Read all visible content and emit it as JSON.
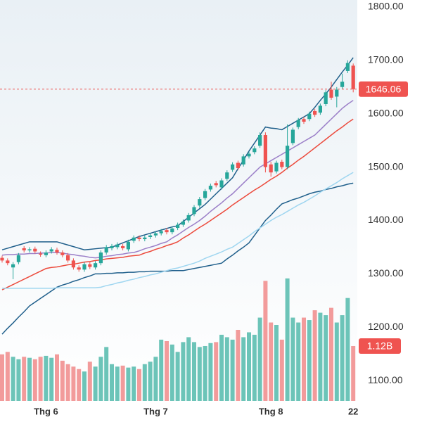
{
  "chart_data": {
    "type": "candlestick",
    "categories": [
      null,
      null,
      null,
      null,
      null,
      null,
      null,
      null,
      "Thg 6",
      null,
      null,
      null,
      null,
      null,
      null,
      null,
      null,
      null,
      null,
      null,
      null,
      null,
      null,
      null,
      null,
      null,
      null,
      null,
      "Thg 7",
      null,
      null,
      null,
      null,
      null,
      null,
      null,
      null,
      null,
      null,
      null,
      null,
      null,
      null,
      null,
      null,
      null,
      null,
      null,
      null,
      "Thg 8",
      null,
      null,
      null,
      null,
      null,
      null,
      null,
      null,
      null,
      null,
      null,
      null,
      null,
      null,
      "22"
    ],
    "open": [
      1330,
      1325,
      1312,
      1322,
      1348,
      1344,
      1347,
      1338,
      1335,
      1342,
      1345,
      1340,
      1335,
      1325,
      1312,
      1308,
      1318,
      1312,
      1320,
      1340,
      1348,
      1350,
      1352,
      1346,
      1362,
      1368,
      1365,
      1369,
      1372,
      1376,
      1382,
      1378,
      1386,
      1392,
      1400,
      1412,
      1428,
      1442,
      1458,
      1470,
      1462,
      1478,
      1495,
      1508,
      1505,
      1520,
      1528,
      1540,
      1560,
      1505,
      1492,
      1510,
      1500,
      1545,
      1575,
      1590,
      1590,
      1605,
      1602,
      1618,
      1645,
      1632,
      1650,
      1680,
      1690
    ],
    "high": [
      1334,
      1329,
      1322,
      1339,
      1352,
      1350,
      1351,
      1342,
      1344,
      1350,
      1349,
      1344,
      1339,
      1329,
      1316,
      1322,
      1322,
      1324,
      1344,
      1354,
      1356,
      1359,
      1356,
      1364,
      1372,
      1372,
      1372,
      1376,
      1380,
      1384,
      1386,
      1389,
      1396,
      1402,
      1414,
      1429,
      1444,
      1459,
      1469,
      1474,
      1479,
      1494,
      1509,
      1512,
      1524,
      1529,
      1539,
      1565,
      1565,
      1510,
      1512,
      1514,
      1580,
      1574,
      1592,
      1594,
      1604,
      1609,
      1619,
      1644,
      1660,
      1650,
      1675,
      1700,
      1694
    ],
    "low": [
      1321,
      1316,
      1290,
      1318,
      1340,
      1340,
      1338,
      1332,
      1331,
      1338,
      1336,
      1331,
      1321,
      1308,
      1304,
      1304,
      1309,
      1308,
      1316,
      1336,
      1344,
      1346,
      1344,
      1342,
      1358,
      1361,
      1361,
      1365,
      1368,
      1372,
      1374,
      1374,
      1382,
      1388,
      1396,
      1408,
      1424,
      1438,
      1454,
      1462,
      1458,
      1474,
      1491,
      1494,
      1501,
      1516,
      1524,
      1536,
      1490,
      1482,
      1488,
      1496,
      1496,
      1541,
      1571,
      1581,
      1586,
      1594,
      1598,
      1614,
      1626,
      1612,
      1646,
      1676,
      1640
    ],
    "close": [
      1325,
      1320,
      1318,
      1335,
      1344,
      1346,
      1342,
      1336,
      1340,
      1346,
      1340,
      1335,
      1325,
      1312,
      1308,
      1318,
      1313,
      1320,
      1340,
      1350,
      1352,
      1355,
      1348,
      1360,
      1368,
      1365,
      1368,
      1372,
      1376,
      1380,
      1378,
      1385,
      1392,
      1398,
      1410,
      1425,
      1440,
      1455,
      1465,
      1466,
      1475,
      1490,
      1505,
      1498,
      1520,
      1525,
      1535,
      1560,
      1500,
      1490,
      1508,
      1500,
      1540,
      1570,
      1588,
      1585,
      1600,
      1598,
      1615,
      1640,
      1630,
      1645,
      1660,
      1695,
      1646.06
    ],
    "up_color": "#26a69a",
    "down_color": "#ef5350",
    "overlays": [
      {
        "color": "#1f5f8b",
        "values": [
          1345,
          1348,
          1351,
          1354,
          1357,
          1360,
          1360,
          1360,
          1360,
          1360,
          1360,
          1357,
          1354,
          1351,
          1348,
          1345,
          1346,
          1347,
          1348,
          1349,
          1350,
          1354,
          1358,
          1362,
          1366,
          1370,
          1373,
          1376,
          1379,
          1382,
          1385,
          1388,
          1390,
          1398,
          1406,
          1414,
          1422,
          1430,
          1440,
          1450,
          1460,
          1470,
          1480,
          1497,
          1513,
          1530,
          1545,
          1560,
          1575,
          1573,
          1572,
          1570,
          1576,
          1582,
          1588,
          1594,
          1600,
          1612,
          1625,
          1637,
          1650,
          1664,
          1678,
          1691,
          1705
        ]
      },
      {
        "color": "#1f5f8b",
        "values": [
          1187,
          1198,
          1208,
          1219,
          1229,
          1240,
          1247,
          1254,
          1261,
          1268,
          1275,
          1279,
          1282,
          1286,
          1289,
          1293,
          1296,
          1300,
          1300,
          1301,
          1301,
          1302,
          1302,
          1303,
          1303,
          1304,
          1304,
          1305,
          1305,
          1305,
          1305,
          1306,
          1306,
          1306,
          1308,
          1310,
          1312,
          1314,
          1316,
          1318,
          1320,
          1328,
          1335,
          1343,
          1350,
          1358,
          1372,
          1386,
          1400,
          1410,
          1421,
          1431,
          1435,
          1439,
          1442,
          1446,
          1450,
          1453,
          1455,
          1458,
          1460,
          1463,
          1465,
          1468,
          1470
        ]
      },
      {
        "color": "#9b7fc8",
        "values": [
          1335,
          1336,
          1336,
          1337,
          1337,
          1338,
          1338,
          1339,
          1339,
          1340,
          1340,
          1339,
          1337,
          1336,
          1334,
          1333,
          1331,
          1330,
          1331,
          1333,
          1334,
          1336,
          1337,
          1339,
          1340,
          1343,
          1347,
          1350,
          1353,
          1357,
          1360,
          1367,
          1373,
          1380,
          1387,
          1393,
          1400,
          1408,
          1417,
          1425,
          1433,
          1442,
          1450,
          1460,
          1470,
          1480,
          1490,
          1500,
          1506,
          1512,
          1518,
          1524,
          1530,
          1536,
          1542,
          1548,
          1554,
          1560,
          1570,
          1580,
          1590,
          1600,
          1610,
          1618,
          1625
        ]
      },
      {
        "color": "#ec4a3c",
        "values": [
          1270,
          1275,
          1280,
          1285,
          1290,
          1295,
          1300,
          1305,
          1310,
          1312,
          1313,
          1315,
          1317,
          1318,
          1320,
          1322,
          1323,
          1325,
          1326,
          1328,
          1329,
          1330,
          1331,
          1333,
          1334,
          1335,
          1339,
          1342,
          1346,
          1349,
          1353,
          1356,
          1360,
          1367,
          1373,
          1380,
          1387,
          1393,
          1400,
          1407,
          1414,
          1421,
          1429,
          1436,
          1443,
          1450,
          1457,
          1463,
          1470,
          1477,
          1483,
          1490,
          1498,
          1505,
          1513,
          1520,
          1528,
          1536,
          1544,
          1552,
          1560,
          1568,
          1575,
          1583,
          1590
        ]
      },
      {
        "color": "#9fd6f0",
        "values": [
          1273,
          1273,
          1273,
          1273,
          1273,
          1273,
          1273,
          1273,
          1273,
          1273,
          1274,
          1274,
          1274,
          1274,
          1274,
          1274,
          1274,
          1274,
          1275,
          1278,
          1280,
          1283,
          1285,
          1288,
          1290,
          1293,
          1295,
          1298,
          1300,
          1303,
          1306,
          1309,
          1311,
          1314,
          1317,
          1320,
          1324,
          1329,
          1333,
          1337,
          1341,
          1346,
          1350,
          1357,
          1364,
          1371,
          1379,
          1386,
          1393,
          1400,
          1406,
          1411,
          1417,
          1423,
          1429,
          1434,
          1440,
          1446,
          1453,
          1459,
          1465,
          1471,
          1478,
          1484,
          1490
        ]
      }
    ],
    "volume": {
      "values": [
        0.95,
        1.0,
        0.9,
        0.85,
        0.9,
        0.88,
        0.85,
        0.9,
        0.92,
        0.88,
        0.95,
        0.82,
        0.75,
        0.7,
        0.65,
        0.6,
        0.8,
        0.7,
        0.9,
        1.1,
        0.75,
        0.7,
        0.72,
        0.68,
        0.7,
        0.65,
        0.75,
        0.8,
        0.9,
        1.25,
        1.22,
        1.15,
        1.0,
        1.2,
        1.3,
        1.2,
        1.1,
        1.12,
        1.18,
        1.2,
        1.35,
        1.3,
        1.25,
        1.45,
        1.3,
        1.4,
        1.35,
        1.7,
        2.45,
        1.6,
        1.55,
        1.25,
        2.5,
        1.7,
        1.6,
        1.7,
        1.65,
        1.85,
        1.8,
        1.75,
        1.9,
        1.6,
        1.75,
        2.1,
        1.12
      ],
      "up_color": "#6cc4b8",
      "down_color": "#f29b9b",
      "ylim": [
        0,
        3
      ]
    },
    "last_volume_label": "1.12B",
    "ylim": [
      1062,
      1813
    ],
    "yticks": [
      {
        "value": 1100,
        "label": "1100.00"
      },
      {
        "value": 1200,
        "label": "1200.00"
      },
      {
        "value": 1300,
        "label": "1300.00"
      },
      {
        "value": 1400,
        "label": "1400.00"
      },
      {
        "value": 1500,
        "label": "1500.00"
      },
      {
        "value": 1600,
        "label": "1600.00"
      },
      {
        "value": 1700,
        "label": "1700.00"
      },
      {
        "value": 1800,
        "label": "1800.00"
      }
    ]
  }
}
